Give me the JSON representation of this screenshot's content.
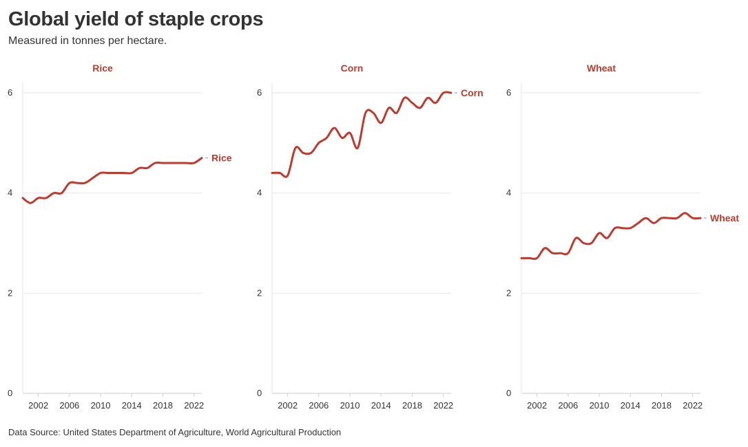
{
  "header": {
    "title": "Global yield of staple crops",
    "subtitle": "Measured in tonnes per hectare."
  },
  "footer": {
    "source": "Data Source: United States Department of Agriculture, World Agricultural Production"
  },
  "colors": {
    "series": "#c0392b",
    "grid": "#e6e6e6",
    "axis": "#cccccc",
    "text": "#333333"
  },
  "chart_data": [
    {
      "type": "line",
      "title": "Rice",
      "end_label": "Rice",
      "x": [
        2000,
        2001,
        2002,
        2003,
        2004,
        2005,
        2006,
        2007,
        2008,
        2009,
        2010,
        2011,
        2012,
        2013,
        2014,
        2015,
        2016,
        2017,
        2018,
        2019,
        2020,
        2021,
        2022,
        2023
      ],
      "values": [
        3.9,
        3.8,
        3.9,
        3.9,
        4.0,
        4.0,
        4.2,
        4.2,
        4.2,
        4.3,
        4.4,
        4.4,
        4.4,
        4.4,
        4.4,
        4.5,
        4.5,
        4.6,
        4.6,
        4.6,
        4.6,
        4.6,
        4.6,
        4.7
      ],
      "xticks": [
        2002,
        2006,
        2010,
        2014,
        2018,
        2022
      ],
      "yticks": [
        0,
        2,
        4,
        6
      ],
      "xlim": [
        2000,
        2023
      ],
      "ylim": [
        0,
        6
      ]
    },
    {
      "type": "line",
      "title": "Corn",
      "end_label": "Corn",
      "x": [
        2000,
        2001,
        2002,
        2003,
        2004,
        2005,
        2006,
        2007,
        2008,
        2009,
        2010,
        2011,
        2012,
        2013,
        2014,
        2015,
        2016,
        2017,
        2018,
        2019,
        2020,
        2021,
        2022,
        2023
      ],
      "values": [
        4.4,
        4.4,
        4.35,
        4.9,
        4.8,
        4.8,
        5.0,
        5.1,
        5.3,
        5.1,
        5.2,
        4.9,
        5.6,
        5.6,
        5.4,
        5.7,
        5.6,
        5.9,
        5.8,
        5.7,
        5.9,
        5.8,
        6.0,
        6.0
      ],
      "xticks": [
        2002,
        2006,
        2010,
        2014,
        2018,
        2022
      ],
      "yticks": [
        0,
        2,
        4,
        6
      ],
      "xlim": [
        2000,
        2023
      ],
      "ylim": [
        0,
        6
      ]
    },
    {
      "type": "line",
      "title": "Wheat",
      "end_label": "Wheat",
      "x": [
        2000,
        2001,
        2002,
        2003,
        2004,
        2005,
        2006,
        2007,
        2008,
        2009,
        2010,
        2011,
        2012,
        2013,
        2014,
        2015,
        2016,
        2017,
        2018,
        2019,
        2020,
        2021,
        2022,
        2023
      ],
      "values": [
        2.7,
        2.7,
        2.7,
        2.9,
        2.8,
        2.8,
        2.8,
        3.1,
        3.0,
        3.0,
        3.2,
        3.1,
        3.3,
        3.3,
        3.3,
        3.4,
        3.5,
        3.4,
        3.5,
        3.5,
        3.5,
        3.6,
        3.5,
        3.5
      ],
      "xticks": [
        2002,
        2006,
        2010,
        2014,
        2018,
        2022
      ],
      "yticks": [
        0,
        2,
        4,
        6
      ],
      "xlim": [
        2000,
        2023
      ],
      "ylim": [
        0,
        6
      ]
    }
  ]
}
